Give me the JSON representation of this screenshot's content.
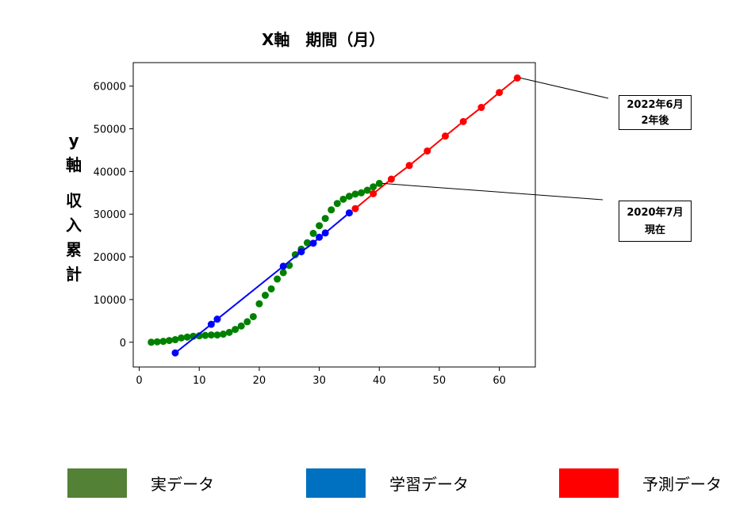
{
  "chart_data": {
    "type": "line",
    "title": "X軸　期間（月）",
    "ylabel_lines": [
      "y",
      "軸",
      "",
      "収",
      "入",
      "累",
      "計"
    ],
    "xlim": [
      -1,
      66
    ],
    "ylim": [
      -5800,
      65500
    ],
    "xticks": [
      0,
      10,
      20,
      30,
      40,
      50,
      60
    ],
    "yticks": [
      0,
      10000,
      20000,
      30000,
      40000,
      50000,
      60000
    ],
    "grid": false,
    "series": [
      {
        "key": "actual",
        "color": "#008000",
        "line": false,
        "x": [
          2,
          3,
          4,
          5,
          6,
          7,
          8,
          9,
          10,
          11,
          12,
          13,
          14,
          15,
          16,
          17,
          18,
          19,
          20,
          21,
          22,
          23,
          24,
          25,
          26,
          27,
          28,
          29,
          30,
          31,
          32,
          33,
          34,
          35,
          36,
          37,
          38,
          39,
          40
        ],
        "y": [
          0,
          100,
          200,
          400,
          600,
          1000,
          1200,
          1400,
          1500,
          1600,
          1700,
          1700,
          1900,
          2300,
          3000,
          3800,
          4800,
          6000,
          9000,
          11000,
          12500,
          14800,
          16300,
          18000,
          20500,
          21800,
          23300,
          25500,
          27300,
          29000,
          31000,
          32500,
          33500,
          34200,
          34700,
          35000,
          35600,
          36400,
          37200
        ]
      },
      {
        "key": "training",
        "color": "#0000ff",
        "line": true,
        "x": [
          6,
          12,
          13,
          24,
          27,
          29,
          30,
          31,
          35
        ],
        "y": [
          -2500,
          4200,
          5400,
          17800,
          21200,
          23200,
          24600,
          25600,
          30300
        ]
      },
      {
        "key": "forecast",
        "color": "#ff0000",
        "line": true,
        "x": [
          36,
          39,
          42,
          45,
          48,
          51,
          54,
          57,
          60,
          63
        ],
        "y": [
          31300,
          34800,
          38200,
          41400,
          44800,
          48300,
          51700,
          55000,
          58500,
          61900
        ]
      }
    ],
    "annotations": [
      {
        "line1": "2022年6月",
        "line2": "2年後",
        "x": 63,
        "y": 61900
      },
      {
        "line1": "2020年7月",
        "line2": "現在",
        "x": 40,
        "y": 37200
      }
    ]
  },
  "legend": [
    {
      "label": "実データ",
      "color": "#538135"
    },
    {
      "label": "学習データ",
      "color": "#0070C0"
    },
    {
      "label": "予測データ",
      "color": "#FF0000"
    }
  ]
}
